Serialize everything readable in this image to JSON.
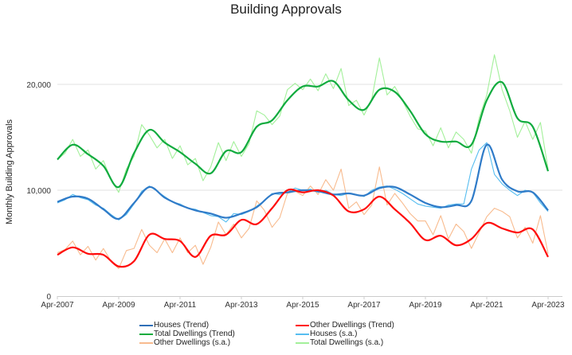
{
  "chart_data": {
    "type": "line",
    "title": "Building Approvals",
    "xlabel": "",
    "ylabel": "Monthly Building Approvals",
    "ylim": [
      0,
      25000
    ],
    "xlim": [
      2007.25,
      2023.25
    ],
    "grid": true,
    "legend_position": "bottom",
    "y_ticks": [
      {
        "value": 0,
        "label": "0"
      },
      {
        "value": 10000,
        "label": "10,000"
      },
      {
        "value": 20000,
        "label": "20,000"
      }
    ],
    "x_ticks": [
      {
        "value": 2007.25,
        "label": "Apr-2007"
      },
      {
        "value": 2009.25,
        "label": "Apr-2009"
      },
      {
        "value": 2011.25,
        "label": "Apr-2011"
      },
      {
        "value": 2013.25,
        "label": "Apr-2013"
      },
      {
        "value": 2015.25,
        "label": "Apr-2015"
      },
      {
        "value": 2017.25,
        "label": "Apr-2017"
      },
      {
        "value": 2019.25,
        "label": "Apr-2019"
      },
      {
        "value": 2021.25,
        "label": "Apr-2021"
      },
      {
        "value": 2023.25,
        "label": "Apr-2023"
      }
    ],
    "trend_x_start": 2007.25,
    "trend_x_step": 0.5,
    "sa_x_start": 2007.25,
    "sa_x_step": 0.25,
    "series": [
      {
        "name": "Total Dwellings (s.a.)",
        "kind": "sa",
        "color": "#a3f09a",
        "values": [
          12900,
          13500,
          14800,
          13200,
          13800,
          12000,
          12800,
          11000,
          9800,
          12000,
          13200,
          16200,
          15200,
          14000,
          14800,
          13000,
          14200,
          12400,
          13000,
          10900,
          12200,
          14500,
          12800,
          14600,
          13200,
          14400,
          17500,
          17100,
          16200,
          17000,
          19500,
          20100,
          19500,
          20500,
          19400,
          21000,
          19600,
          21500,
          18000,
          18500,
          17100,
          18600,
          22500,
          19000,
          19800,
          18500,
          17000,
          15800,
          15600,
          14200,
          15900,
          14000,
          15500,
          14800,
          13500,
          16800,
          19000,
          22800,
          19500,
          17500,
          15000,
          16500,
          14800,
          16400,
          12000
        ]
      },
      {
        "name": "Houses (s.a.)",
        "kind": "sa",
        "color": "#56bdf0",
        "values": [
          8800,
          9100,
          9600,
          9300,
          9100,
          8600,
          8300,
          7700,
          7200,
          7700,
          8700,
          9900,
          10400,
          9900,
          9400,
          8900,
          8700,
          8300,
          8200,
          7900,
          7600,
          7500,
          7000,
          7800,
          7700,
          8000,
          8500,
          9000,
          9700,
          9600,
          9800,
          10200,
          10000,
          10100,
          9800,
          10000,
          9600,
          9500,
          9700,
          9600,
          9400,
          10000,
          10300,
          10400,
          10100,
          9700,
          9200,
          8700,
          8500,
          8400,
          8300,
          8600,
          8700,
          8700,
          12000,
          13800,
          14500,
          11500,
          10600,
          10000,
          9500,
          10000,
          9800,
          8800,
          8000
        ]
      },
      {
        "name": "Other Dwellings (s.a.)",
        "kind": "sa",
        "color": "#f8bb8e",
        "values": [
          4100,
          4400,
          5200,
          3900,
          4700,
          3400,
          4500,
          3300,
          2600,
          4300,
          4500,
          6300,
          4800,
          4100,
          5400,
          4100,
          5500,
          4100,
          4800,
          3000,
          4600,
          7000,
          5800,
          6800,
          5500,
          6400,
          9000,
          8100,
          6500,
          7400,
          9700,
          9900,
          9500,
          10400,
          9600,
          11000,
          10000,
          12000,
          8300,
          8900,
          7700,
          8600,
          12200,
          8600,
          9700,
          8800,
          7800,
          7100,
          7100,
          5800,
          7600,
          5400,
          6800,
          6100,
          4500,
          6000,
          7500,
          8300,
          8000,
          7500,
          5500,
          6500,
          5000,
          7600,
          4000
        ]
      },
      {
        "name": "Total Dwellings (Trend)",
        "kind": "trend",
        "color": "#10ab3e",
        "values": [
          12900,
          14300,
          13400,
          12300,
          10300,
          13500,
          15700,
          14500,
          13600,
          12500,
          11600,
          13700,
          13600,
          16000,
          16600,
          18500,
          19800,
          19800,
          20300,
          18500,
          17600,
          19500,
          19300,
          17500,
          15300,
          14600,
          14600,
          14300,
          18500,
          20200,
          16800,
          16000,
          11800
        ]
      },
      {
        "name": "Houses (Trend)",
        "kind": "trend",
        "color": "#2f7bc8",
        "values": [
          8900,
          9400,
          9200,
          8200,
          7300,
          8800,
          10300,
          9300,
          8600,
          8100,
          7800,
          7400,
          7800,
          8400,
          9600,
          9800,
          10000,
          9900,
          9600,
          9700,
          9500,
          10200,
          10300,
          9600,
          8800,
          8400,
          8600,
          9000,
          14300,
          11000,
          9900,
          9800,
          8100
        ]
      },
      {
        "name": "Other Dwellings (Trend)",
        "kind": "trend",
        "color": "#ff0a0a",
        "values": [
          3900,
          4600,
          4000,
          3900,
          2800,
          3300,
          5800,
          5400,
          5200,
          3700,
          5700,
          5800,
          7200,
          6800,
          8300,
          10000,
          9800,
          10000,
          9500,
          8000,
          8200,
          9400,
          8200,
          6900,
          5300,
          5700,
          4800,
          5400,
          6900,
          6400,
          6000,
          6300,
          3700
        ]
      }
    ],
    "legend": [
      {
        "label": "Houses (Trend)",
        "color": "#2f6fb8"
      },
      {
        "label": "Other Dwellings (Trend)",
        "color": "#ff0a0a"
      },
      {
        "label": "Total Dwellings (Trend)",
        "color": "#10ab3e"
      },
      {
        "label": "Houses (s.a.)",
        "color": "#56bdf0"
      },
      {
        "label": "Other Dwellings (s.a.)",
        "color": "#f8bb8e"
      },
      {
        "label": "Total Dwellings (s.a.)",
        "color": "#a3f09a"
      }
    ]
  }
}
